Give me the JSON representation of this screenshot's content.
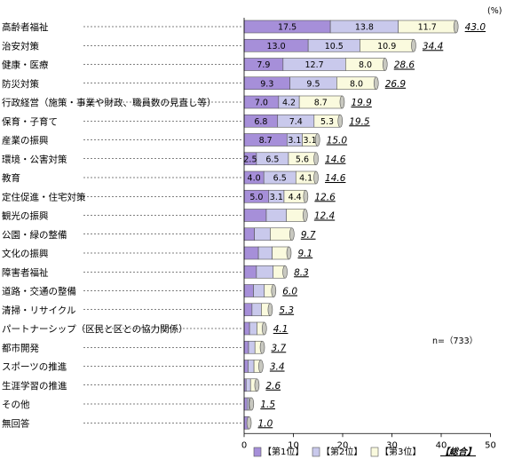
{
  "chart_data": {
    "type": "bar",
    "orientation": "horizontal",
    "stacked": true,
    "unit_label": "(%)",
    "sample_size": "n=（733）",
    "xlim": [
      0,
      50
    ],
    "xticks": [
      0,
      10,
      20,
      30,
      40,
      50
    ],
    "categories": [
      "高齢者福祉",
      "治安対策",
      "健康・医療",
      "防災対策",
      "行政経営（施策・事業や財政、職員数の見直し等）",
      "保育・子育て",
      "産業の振興",
      "環境・公害対策",
      "教育",
      "定住促進・住宅対策",
      "観光の振興",
      "公園・緑の整備",
      "文化の振興",
      "障害者福祉",
      "道路・交通の整備",
      "清掃・リサイクル",
      "パートナーシップ（区民と区との協力関係）",
      "都市開発",
      "スポーツの推進",
      "生涯学習の推進",
      "その他",
      "無回答"
    ],
    "series": [
      {
        "name": "【第1位】",
        "color": "#a68fd9",
        "values": [
          17.5,
          13.0,
          7.9,
          9.3,
          7.0,
          6.8,
          8.7,
          2.5,
          4.0,
          5.0,
          4.5,
          2.1,
          2.9,
          2.5,
          1.9,
          1.6,
          1.1,
          0.9,
          0.8,
          0.4,
          0.6,
          1.0
        ],
        "labels": [
          "17.5",
          "13.0",
          "7.9",
          "9.3",
          "7.0",
          "6.8",
          "8.7",
          "2.5",
          "4.0",
          "5.0",
          "",
          "",
          "",
          "",
          "",
          "",
          "",
          "",
          "",
          "",
          "",
          ""
        ]
      },
      {
        "name": "【第2位】",
        "color": "#c9c9ec",
        "values": [
          13.8,
          10.5,
          12.7,
          9.5,
          4.2,
          7.4,
          3.1,
          6.5,
          6.5,
          3.1,
          4.1,
          3.2,
          2.8,
          3.4,
          2.2,
          1.9,
          1.5,
          1.3,
          1.2,
          0.9,
          0.4,
          0.0
        ],
        "labels": [
          "13.8",
          "10.5",
          "12.7",
          "9.5",
          "4.2",
          "7.4",
          "3.1",
          "6.5",
          "6.5",
          "3.1",
          "",
          "",
          "",
          "",
          "",
          "",
          "",
          "",
          "",
          "",
          "",
          ""
        ]
      },
      {
        "name": "【第3位】",
        "color": "#fafade",
        "values": [
          11.7,
          10.9,
          8.0,
          8.0,
          8.7,
          5.3,
          3.1,
          5.6,
          4.1,
          4.4,
          3.8,
          4.4,
          3.4,
          2.4,
          1.9,
          1.8,
          1.5,
          1.5,
          1.4,
          1.3,
          0.5,
          0.0
        ],
        "labels": [
          "11.7",
          "10.9",
          "8.0",
          "8.0",
          "8.7",
          "5.3",
          "3.1",
          "5.6",
          "4.1",
          "4.4",
          "",
          "",
          "",
          "",
          "",
          "",
          "",
          "",
          "",
          "",
          "",
          ""
        ]
      }
    ],
    "totals": [
      "43.0",
      "34.4",
      "28.6",
      "26.9",
      "19.9",
      "19.5",
      "15.0",
      "14.6",
      "14.6",
      "12.6",
      "12.4",
      "9.7",
      "9.1",
      "8.3",
      "6.0",
      "5.3",
      "4.1",
      "3.7",
      "3.4",
      "2.6",
      "1.5",
      "1.0"
    ],
    "totals_series_name": "【総合】",
    "legend_position": "bottom-right",
    "grid": false
  }
}
